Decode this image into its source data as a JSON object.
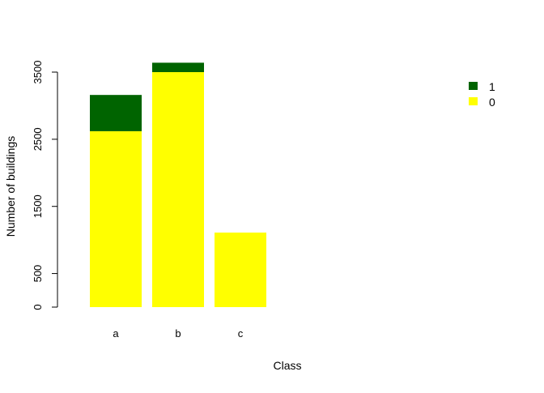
{
  "chart_data": {
    "type": "bar",
    "stacked": true,
    "categories": [
      "a",
      "b",
      "c"
    ],
    "series": [
      {
        "name": "0",
        "color": "#FFFF00",
        "values": [
          2620,
          3500,
          1110
        ]
      },
      {
        "name": "1",
        "color": "#006400",
        "values": [
          540,
          140,
          0
        ]
      }
    ],
    "xlabel": "Class",
    "ylabel": "Number of buildings",
    "ylim": [
      0,
      3640
    ],
    "yticks": [
      0,
      500,
      1500,
      2500,
      3500
    ],
    "ytick_labels": [
      "0",
      "500",
      "1500",
      "2500",
      "3500"
    ],
    "grid": false,
    "legend": {
      "placement": "top-right",
      "entries": [
        {
          "label": "1",
          "color": "#006400"
        },
        {
          "label": "0",
          "color": "#FFFF00"
        }
      ]
    }
  }
}
